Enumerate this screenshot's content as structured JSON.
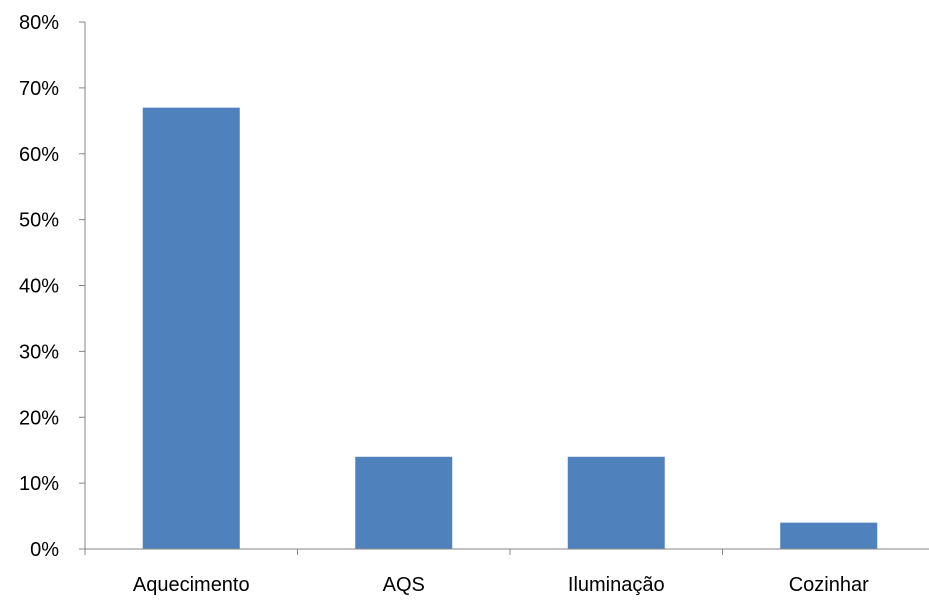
{
  "chart_data": {
    "type": "bar",
    "categories": [
      "Aquecimento",
      "AQS",
      "Iluminação",
      "Cozinhar"
    ],
    "values": [
      0.67,
      0.14,
      0.14,
      0.04
    ],
    "ylim": [
      0,
      0.8
    ],
    "yticks": [
      0,
      0.1,
      0.2,
      0.3,
      0.4,
      0.5,
      0.6,
      0.7,
      0.8
    ],
    "ytick_labels": [
      "0%",
      "10%",
      "20%",
      "30%",
      "40%",
      "50%",
      "60%",
      "70%",
      "80%"
    ],
    "title": "",
    "xlabel": "",
    "ylabel": "",
    "grid": false,
    "legend": "none",
    "bar_color": "#4F81BD",
    "axis_color": "#868686"
  }
}
